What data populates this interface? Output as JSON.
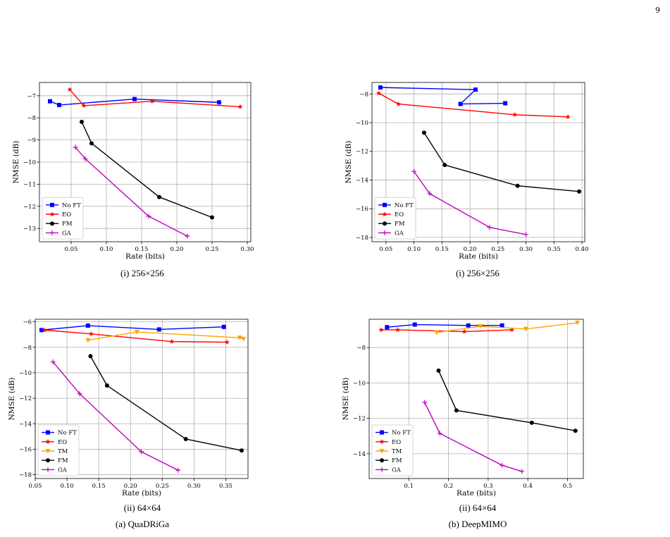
{
  "page_number": "9",
  "colors": {
    "No FT": "#0000ff",
    "EO": "#ff0000",
    "TM": "#ffa500",
    "FM": "#000000",
    "GA": "#c000c0"
  },
  "markers": {
    "No FT": "square",
    "EO": "star",
    "TM": "triangle-down",
    "FM": "circle",
    "GA": "plus"
  },
  "captions": {
    "a1": "(i) 256×256",
    "b1": "(i) 256×256",
    "a2": "(ii) 64×64",
    "b2": "(ii) 64×64",
    "a": "(a) QuaDRiGa",
    "b": "(b) DeepMIMO"
  },
  "chart_data": [
    {
      "id": "quadriga-256",
      "type": "line",
      "xlabel": "Rate (bits)",
      "ylabel": "NMSE (dB)",
      "xlim": [
        0.005,
        0.305
      ],
      "ylim": [
        -13.6,
        -6.4
      ],
      "xticks": [
        0.05,
        0.1,
        0.15,
        0.2,
        0.25,
        0.3
      ],
      "xtick_labels": [
        "0.05",
        "0.10",
        "0.15",
        "0.20",
        "0.25",
        "0.30"
      ],
      "yticks": [
        -13,
        -12,
        -11,
        -10,
        -9,
        -8,
        -7
      ],
      "ytick_labels": [
        "−13",
        "−12",
        "−11",
        "−10",
        "−9",
        "−8",
        "−7"
      ],
      "grid": true,
      "legend": "lower-left",
      "series": [
        {
          "name": "No FT",
          "x": [
            0.02,
            0.033,
            0.14,
            0.26
          ],
          "y": [
            -7.25,
            -7.42,
            -7.15,
            -7.3
          ]
        },
        {
          "name": "EO",
          "x": [
            0.048,
            0.068,
            0.165,
            0.29
          ],
          "y": [
            -6.72,
            -7.45,
            -7.25,
            -7.5
          ]
        },
        {
          "name": "FM",
          "x": [
            0.065,
            0.079,
            0.175,
            0.25
          ],
          "y": [
            -8.18,
            -9.15,
            -11.58,
            -12.5
          ]
        },
        {
          "name": "GA",
          "x": [
            0.056,
            0.07,
            0.16,
            0.215
          ],
          "y": [
            -9.33,
            -9.85,
            -12.45,
            -13.35
          ]
        }
      ]
    },
    {
      "id": "deepmimo-256",
      "type": "line",
      "xlabel": "Rate (bits)",
      "ylabel": "NMSE (dB)",
      "xlim": [
        0.025,
        0.405
      ],
      "ylim": [
        -18.3,
        -7.2
      ],
      "xticks": [
        0.05,
        0.1,
        0.15,
        0.2,
        0.25,
        0.3,
        0.35,
        0.4
      ],
      "xtick_labels": [
        "0.05",
        "0.10",
        "0.15",
        "0.20",
        "0.25",
        "0.30",
        "0.35",
        "0.40"
      ],
      "yticks": [
        -18,
        -16,
        -14,
        -12,
        -10,
        -8
      ],
      "ytick_labels": [
        "−18",
        "−16",
        "−14",
        "−12",
        "−10",
        "−8"
      ],
      "grid": true,
      "legend": "lower-left",
      "series": [
        {
          "name": "No FT",
          "x": [
            0.04,
            0.21,
            0.183,
            0.263
          ],
          "y": [
            -7.55,
            -7.7,
            -8.7,
            -8.65
          ]
        },
        {
          "name": "EO",
          "x": [
            0.037,
            0.072,
            0.28,
            0.375
          ],
          "y": [
            -7.95,
            -8.7,
            -9.45,
            -9.6
          ]
        },
        {
          "name": "FM",
          "x": [
            0.118,
            0.155,
            0.285,
            0.395
          ],
          "y": [
            -10.7,
            -12.95,
            -14.4,
            -14.8
          ]
        },
        {
          "name": "GA",
          "x": [
            0.1,
            0.128,
            0.235,
            0.3
          ],
          "y": [
            -13.4,
            -14.95,
            -17.3,
            -17.8
          ]
        }
      ]
    },
    {
      "id": "quadriga-64",
      "type": "line",
      "xlabel": "Rate (bits)",
      "ylabel": "NMSE (dB)",
      "xlim": [
        0.05,
        0.385
      ],
      "ylim": [
        -18.3,
        -5.8
      ],
      "xticks": [
        0.05,
        0.1,
        0.15,
        0.2,
        0.25,
        0.3,
        0.35
      ],
      "xtick_labels": [
        "0.05",
        "0.10",
        "0.15",
        "0.20",
        "0.25",
        "0.30",
        "0.35"
      ],
      "yticks": [
        -18,
        -16,
        -14,
        -12,
        -10,
        -8,
        -6
      ],
      "ytick_labels": [
        "−18",
        "−16",
        "−14",
        "−12",
        "−10",
        "−8",
        "−6"
      ],
      "grid": true,
      "legend": "lower-left",
      "series": [
        {
          "name": "No FT",
          "x": [
            0.06,
            0.133,
            0.245,
            0.347
          ],
          "y": [
            -6.65,
            -6.3,
            -6.6,
            -6.4
          ]
        },
        {
          "name": "EO",
          "x": [
            0.065,
            0.138,
            0.265,
            0.352
          ],
          "y": [
            -6.65,
            -6.95,
            -7.55,
            -7.6
          ]
        },
        {
          "name": "TM",
          "x": [
            0.133,
            0.21,
            0.372,
            0.378
          ],
          "y": [
            -7.45,
            -6.8,
            -7.25,
            -7.35
          ]
        },
        {
          "name": "FM",
          "x": [
            0.137,
            0.163,
            0.287,
            0.375
          ],
          "y": [
            -8.7,
            -11.0,
            -15.2,
            -16.1
          ]
        },
        {
          "name": "GA",
          "x": [
            0.078,
            0.12,
            0.217,
            0.275
          ],
          "y": [
            -9.15,
            -11.65,
            -16.2,
            -17.65
          ]
        }
      ]
    },
    {
      "id": "deepmimo-64",
      "type": "line",
      "xlabel": "Rate (bits)",
      "ylabel": "NMSE (dB)",
      "xlim": [
        0.0,
        0.54
      ],
      "ylim": [
        -15.4,
        -6.4
      ],
      "xticks": [
        0.1,
        0.2,
        0.3,
        0.4,
        0.5
      ],
      "xtick_labels": [
        "0.1",
        "0.2",
        "0.3",
        "0.4",
        "0.5"
      ],
      "yticks": [
        -14,
        -12,
        -10,
        -8
      ],
      "ytick_labels": [
        "−14",
        "−12",
        "−10",
        "−8"
      ],
      "grid": true,
      "legend": "lower-left",
      "series": [
        {
          "name": "No FT",
          "x": [
            0.045,
            0.115,
            0.25,
            0.335
          ],
          "y": [
            -6.85,
            -6.7,
            -6.75,
            -6.75
          ]
        },
        {
          "name": "EO",
          "x": [
            0.03,
            0.072,
            0.24,
            0.36
          ],
          "y": [
            -7.0,
            -7.0,
            -7.1,
            -7.0
          ]
        },
        {
          "name": "TM",
          "x": [
            0.17,
            0.28,
            0.395,
            0.525
          ],
          "y": [
            -7.15,
            -6.8,
            -6.95,
            -6.6
          ]
        },
        {
          "name": "FM",
          "x": [
            0.175,
            0.22,
            0.41,
            0.52
          ],
          "y": [
            -9.3,
            -11.55,
            -12.25,
            -12.7
          ]
        },
        {
          "name": "GA",
          "x": [
            0.14,
            0.178,
            0.335,
            0.385
          ],
          "y": [
            -11.1,
            -12.85,
            -14.65,
            -15.0
          ]
        }
      ]
    }
  ]
}
